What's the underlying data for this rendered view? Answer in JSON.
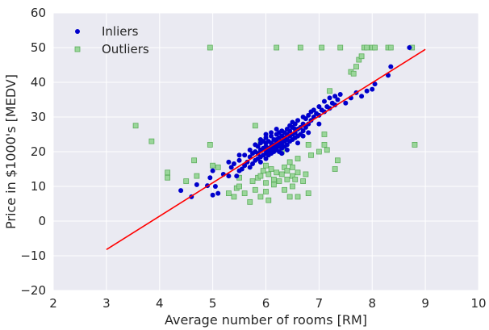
{
  "chart_data": {
    "type": "scatter",
    "xlabel": "Average number of rooms [RM]",
    "ylabel": "Price in $1000's [MEDV]",
    "xlim": [
      2,
      10
    ],
    "ylim": [
      -20,
      60
    ],
    "xticks": [
      2,
      3,
      4,
      5,
      6,
      7,
      8,
      9,
      10
    ],
    "yticks": [
      -20,
      -10,
      0,
      10,
      20,
      30,
      40,
      50,
      60
    ],
    "grid": true,
    "legend_position": "top-left",
    "colors": {
      "background": "#eaeaf2",
      "grid": "#ffffff",
      "inliers": "#0000cc",
      "outliers_fill": "#9ad69a",
      "outliers_edge": "#5cad5c",
      "fit_line": "#ff0000"
    },
    "series": [
      {
        "name": "Inliers",
        "marker": "circle",
        "points": [
          [
            4.4,
            8.8
          ],
          [
            4.6,
            7.0
          ],
          [
            4.7,
            10.5
          ],
          [
            4.9,
            10.2
          ],
          [
            4.95,
            12.5
          ],
          [
            5.0,
            7.5
          ],
          [
            5.05,
            10.0
          ],
          [
            5.1,
            8.0
          ],
          [
            5.0,
            14.5
          ],
          [
            5.2,
            13.5
          ],
          [
            5.3,
            13.0
          ],
          [
            5.35,
            15.5
          ],
          [
            5.4,
            16.5
          ],
          [
            5.45,
            13.0
          ],
          [
            5.5,
            14.5
          ],
          [
            5.5,
            17.5
          ],
          [
            5.55,
            15.0
          ],
          [
            5.6,
            16.0
          ],
          [
            5.6,
            19.0
          ],
          [
            5.65,
            17.0
          ],
          [
            5.7,
            15.5
          ],
          [
            5.7,
            18.5
          ],
          [
            5.7,
            20.5
          ],
          [
            5.75,
            16.5
          ],
          [
            5.75,
            19.5
          ],
          [
            5.8,
            17.5
          ],
          [
            5.8,
            20.0
          ],
          [
            5.8,
            22.0
          ],
          [
            5.85,
            18.0
          ],
          [
            5.85,
            19.5
          ],
          [
            5.85,
            21.5
          ],
          [
            5.9,
            17.0
          ],
          [
            5.9,
            18.5
          ],
          [
            5.9,
            20.5
          ],
          [
            5.9,
            22.5
          ],
          [
            5.95,
            19.0
          ],
          [
            5.95,
            21.0
          ],
          [
            5.95,
            23.0
          ],
          [
            6.0,
            18.0
          ],
          [
            6.0,
            19.5
          ],
          [
            6.0,
            20.5
          ],
          [
            6.0,
            21.5
          ],
          [
            6.0,
            22.5
          ],
          [
            6.0,
            24.0
          ],
          [
            6.05,
            19.0
          ],
          [
            6.05,
            20.0
          ],
          [
            6.05,
            21.0
          ],
          [
            6.05,
            23.0
          ],
          [
            6.1,
            19.5
          ],
          [
            6.1,
            20.5
          ],
          [
            6.1,
            21.5
          ],
          [
            6.1,
            22.5
          ],
          [
            6.1,
            24.5
          ],
          [
            6.15,
            20.0
          ],
          [
            6.15,
            21.0
          ],
          [
            6.15,
            22.0
          ],
          [
            6.15,
            23.5
          ],
          [
            6.2,
            20.5
          ],
          [
            6.2,
            21.5
          ],
          [
            6.2,
            22.5
          ],
          [
            6.2,
            23.5
          ],
          [
            6.2,
            25.0
          ],
          [
            6.25,
            20.0
          ],
          [
            6.25,
            21.5
          ],
          [
            6.25,
            22.5
          ],
          [
            6.25,
            24.0
          ],
          [
            6.3,
            21.0
          ],
          [
            6.3,
            22.0
          ],
          [
            6.3,
            23.0
          ],
          [
            6.3,
            24.5
          ],
          [
            6.3,
            26.0
          ],
          [
            6.35,
            21.5
          ],
          [
            6.35,
            23.0
          ],
          [
            6.35,
            24.0
          ],
          [
            6.35,
            25.5
          ],
          [
            6.4,
            22.0
          ],
          [
            6.4,
            23.5
          ],
          [
            6.4,
            25.0
          ],
          [
            6.4,
            26.5
          ],
          [
            6.45,
            23.0
          ],
          [
            6.45,
            24.5
          ],
          [
            6.45,
            26.0
          ],
          [
            6.5,
            23.5
          ],
          [
            6.5,
            25.0
          ],
          [
            6.5,
            27.0
          ],
          [
            6.55,
            24.0
          ],
          [
            6.55,
            25.5
          ],
          [
            6.55,
            28.0
          ],
          [
            6.6,
            24.5
          ],
          [
            6.6,
            26.5
          ],
          [
            6.6,
            29.0
          ],
          [
            6.65,
            25.0
          ],
          [
            6.65,
            27.0
          ],
          [
            6.7,
            26.0
          ],
          [
            6.7,
            28.0
          ],
          [
            6.7,
            30.0
          ],
          [
            6.75,
            27.0
          ],
          [
            6.75,
            29.5
          ],
          [
            6.8,
            28.0
          ],
          [
            6.8,
            30.5
          ],
          [
            6.85,
            29.0
          ],
          [
            6.85,
            31.5
          ],
          [
            6.9,
            30.0
          ],
          [
            6.9,
            32.0
          ],
          [
            6.95,
            31.0
          ],
          [
            7.0,
            30.5
          ],
          [
            7.0,
            33.0
          ],
          [
            7.05,
            32.0
          ],
          [
            7.1,
            31.5
          ],
          [
            7.1,
            34.5
          ],
          [
            7.15,
            33.0
          ],
          [
            7.2,
            32.5
          ],
          [
            7.2,
            35.5
          ],
          [
            7.25,
            34.0
          ],
          [
            7.3,
            33.5
          ],
          [
            7.3,
            36.0
          ],
          [
            7.35,
            35.0
          ],
          [
            7.4,
            36.5
          ],
          [
            7.5,
            34.0
          ],
          [
            7.6,
            35.5
          ],
          [
            7.7,
            37.0
          ],
          [
            7.8,
            36.0
          ],
          [
            7.9,
            37.5
          ],
          [
            8.0,
            38.0
          ],
          [
            8.05,
            39.5
          ],
          [
            8.3,
            42.0
          ],
          [
            8.35,
            44.5
          ],
          [
            8.7,
            50.0
          ],
          [
            6.2,
            26.5
          ],
          [
            6.1,
            25.5
          ],
          [
            6.0,
            25.0
          ],
          [
            5.9,
            23.5
          ],
          [
            6.5,
            28.5
          ],
          [
            6.6,
            22.5
          ],
          [
            5.5,
            19.0
          ],
          [
            5.3,
            17.0
          ],
          [
            6.3,
            19.5
          ],
          [
            6.4,
            20.5
          ],
          [
            6.7,
            24.5
          ],
          [
            6.8,
            25.5
          ],
          [
            7.0,
            28.0
          ],
          [
            6.45,
            27.5
          ],
          [
            6.55,
            26.5
          ],
          [
            6.25,
            25.5
          ]
        ]
      },
      {
        "name": "Outliers",
        "marker": "square",
        "points": [
          [
            3.55,
            27.5
          ],
          [
            3.85,
            23.0
          ],
          [
            4.15,
            14.0
          ],
          [
            4.15,
            12.5
          ],
          [
            4.5,
            11.5
          ],
          [
            4.65,
            17.5
          ],
          [
            4.7,
            13.0
          ],
          [
            4.95,
            22.0
          ],
          [
            4.95,
            50.0
          ],
          [
            5.0,
            16.0
          ],
          [
            5.1,
            15.5
          ],
          [
            5.3,
            8.0
          ],
          [
            5.4,
            7.0
          ],
          [
            5.45,
            9.5
          ],
          [
            5.5,
            10.0
          ],
          [
            5.5,
            12.5
          ],
          [
            5.6,
            8.0
          ],
          [
            5.7,
            5.5
          ],
          [
            5.75,
            11.5
          ],
          [
            5.8,
            9.0
          ],
          [
            5.85,
            12.5
          ],
          [
            5.9,
            13.0
          ],
          [
            5.9,
            7.0
          ],
          [
            5.95,
            14.5
          ],
          [
            6.0,
            8.5
          ],
          [
            6.0,
            11.0
          ],
          [
            6.05,
            6.0
          ],
          [
            6.05,
            13.5
          ],
          [
            6.1,
            15.0
          ],
          [
            6.15,
            10.5
          ],
          [
            6.15,
            12.0
          ],
          [
            6.2,
            14.0
          ],
          [
            6.2,
            50.0
          ],
          [
            6.25,
            11.5
          ],
          [
            6.3,
            13.5
          ],
          [
            6.35,
            15.5
          ],
          [
            6.35,
            9.0
          ],
          [
            6.4,
            12.0
          ],
          [
            6.4,
            14.5
          ],
          [
            6.45,
            7.0
          ],
          [
            6.45,
            17.0
          ],
          [
            6.5,
            10.0
          ],
          [
            6.5,
            13.0
          ],
          [
            6.5,
            15.5
          ],
          [
            6.55,
            12.0
          ],
          [
            6.6,
            14.0
          ],
          [
            6.6,
            7.0
          ],
          [
            6.65,
            50.0
          ],
          [
            6.7,
            11.5
          ],
          [
            6.75,
            13.5
          ],
          [
            6.8,
            8.0
          ],
          [
            6.85,
            19.0
          ],
          [
            7.0,
            20.0
          ],
          [
            7.05,
            50.0
          ],
          [
            7.1,
            25.0
          ],
          [
            7.15,
            20.5
          ],
          [
            7.2,
            37.5
          ],
          [
            7.3,
            15.0
          ],
          [
            7.35,
            17.5
          ],
          [
            7.4,
            50.0
          ],
          [
            7.6,
            43.0
          ],
          [
            7.65,
            42.5
          ],
          [
            7.7,
            44.5
          ],
          [
            7.75,
            46.5
          ],
          [
            7.8,
            47.5
          ],
          [
            7.85,
            50.0
          ],
          [
            7.9,
            50.0
          ],
          [
            8.0,
            50.0
          ],
          [
            8.05,
            50.0
          ],
          [
            8.3,
            50.0
          ],
          [
            8.35,
            50.0
          ],
          [
            8.75,
            50.0
          ],
          [
            8.8,
            22.0
          ],
          [
            5.8,
            27.5
          ],
          [
            5.9,
            23.0
          ],
          [
            6.0,
            16.0
          ],
          [
            6.3,
            20.0
          ],
          [
            6.6,
            18.0
          ],
          [
            6.8,
            22.0
          ],
          [
            7.1,
            22.0
          ]
        ]
      }
    ],
    "fit_line": {
      "x": [
        3.0,
        9.0
      ],
      "y": [
        -8.2,
        49.5
      ]
    }
  }
}
